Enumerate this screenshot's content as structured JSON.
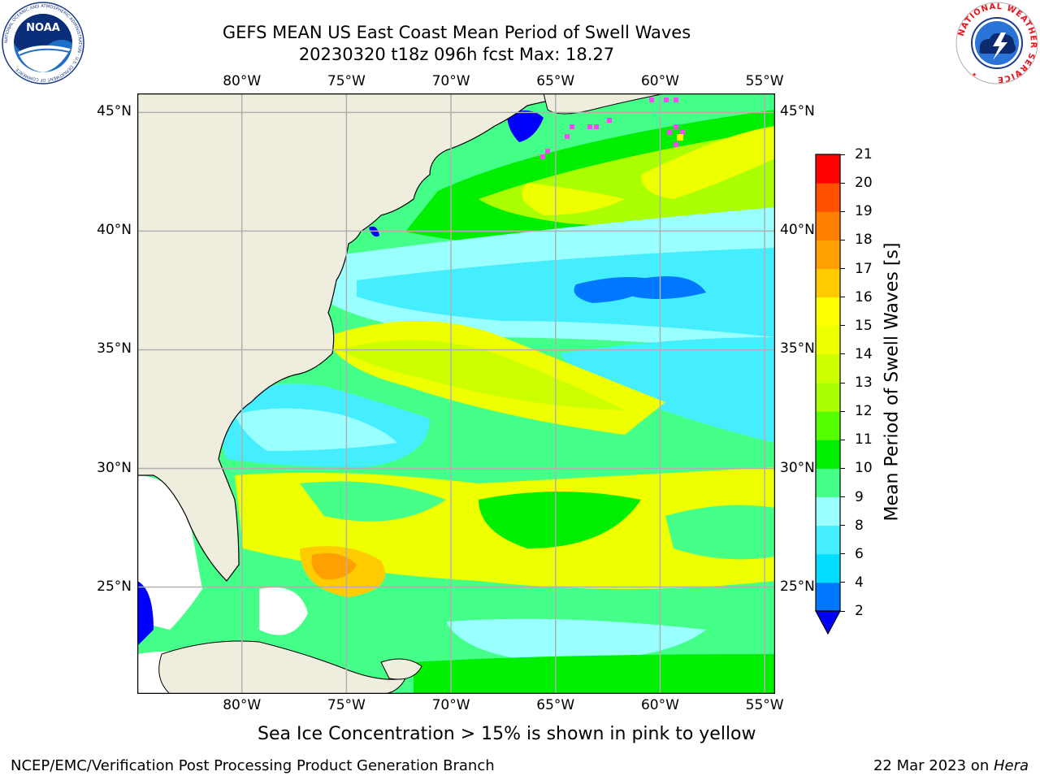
{
  "header": {
    "title_line1": "GEFS MEAN US East Coast Mean Period of Swell Waves",
    "title_line2": "20230320 t18z 096h fcst   Max: 18.27"
  },
  "logos": {
    "left": {
      "name": "noaa-logo",
      "text": "NOAA",
      "ring_text": "NATIONAL OCEANIC AND ATMOSPHERIC ADMINISTRATION · U.S. DEPARTMENT OF COMMERCE"
    },
    "right": {
      "name": "nws-logo",
      "ring_text": "NATIONAL WEATHER SERVICE"
    }
  },
  "map": {
    "lon_ticks": [
      "80°W",
      "75°W",
      "70°W",
      "65°W",
      "60°W",
      "55°W"
    ],
    "lat_ticks": [
      "45°N",
      "40°N",
      "35°N",
      "30°N",
      "25°N"
    ],
    "lon_values": [
      -80,
      -75,
      -70,
      -65,
      -60,
      -55
    ],
    "lat_values": [
      45,
      40,
      35,
      30,
      25
    ],
    "extent": {
      "lon_min": -85,
      "lon_max": -54.5,
      "lat_min": 20.5,
      "lat_max": 45.8
    },
    "grid": true,
    "colors": {
      "land": "#efedde",
      "coast": "#000000",
      "grid": "#b0b0b0",
      "no_data": "#ffffff",
      "sea_ice": "#ff44ff"
    }
  },
  "colorbar": {
    "label": "Mean Period of Swell Waves [s]",
    "levels": [
      2,
      4,
      6,
      8,
      9,
      10,
      11,
      12,
      13,
      14,
      15,
      16,
      17,
      18,
      19,
      20,
      21
    ],
    "tick_labels": [
      "2",
      "4",
      "6",
      "8",
      "9",
      "10",
      "11",
      "12",
      "13",
      "14",
      "15",
      "16",
      "17",
      "18",
      "19",
      "20",
      "21"
    ],
    "colors": [
      "#0077ff",
      "#00ddff",
      "#44eeff",
      "#99ffff",
      "#44ff88",
      "#00ee00",
      "#55ff00",
      "#aaff00",
      "#ccff00",
      "#eeff00",
      "#ffff00",
      "#ffcc00",
      "#ffa000",
      "#ff8000",
      "#ff5000",
      "#ff2000"
    ],
    "extend_below_color": "#0000ff",
    "top_color": "#ff0000"
  },
  "caption": "Sea Ice Concentration > 15% is shown in pink to yellow",
  "footer": {
    "left": "NCEP/EMC/Verification Post Processing Product Generation Branch",
    "right_date": "22 Mar 2023 on ",
    "right_machine": "Hera"
  }
}
